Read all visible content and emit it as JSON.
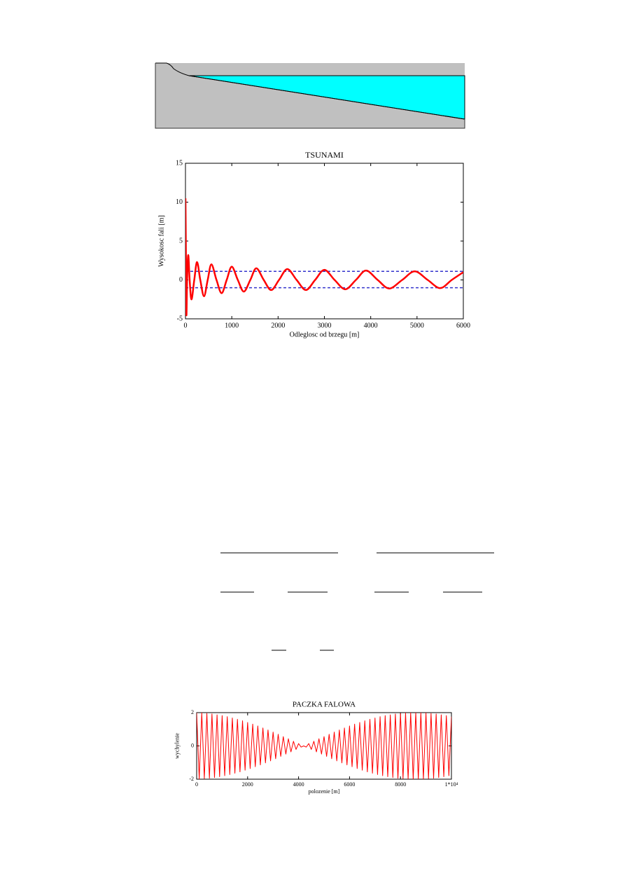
{
  "chart_data": [
    {
      "type": "line",
      "title": "TSUNAMI",
      "y_label": "Wysokosc fali [m]",
      "x_label": "Odleglosc od brzegu [m]",
      "color": "#ff0000",
      "x": [
        0,
        10,
        20,
        35,
        60,
        90,
        130,
        190,
        250,
        320,
        400,
        480,
        560,
        670,
        780,
        890,
        1000,
        1130,
        1260,
        1400,
        1530,
        1690,
        1850,
        2020,
        2200,
        2400,
        2600,
        2800,
        3000,
        3220,
        3450,
        3680,
        3900,
        4150,
        4400,
        4680,
        4950,
        5230,
        5500,
        5750,
        6000
      ],
      "values": [
        10.5,
        3,
        -4.5,
        0,
        3.2,
        0,
        -2.5,
        0,
        2.3,
        0,
        -2.1,
        0,
        2.0,
        0,
        -1.7,
        0,
        1.7,
        0,
        -1.5,
        0,
        1.5,
        0,
        -1.3,
        0,
        1.4,
        0,
        -1.3,
        0,
        1.3,
        0,
        -1.2,
        0,
        1.2,
        0,
        -1.1,
        0,
        1.1,
        0,
        -1.05,
        0,
        1.0
      ],
      "hlines": [
        {
          "value": 1.1,
          "color": "#3333cc"
        },
        {
          "value": -1,
          "color": "#3333cc"
        }
      ],
      "xlim": [
        0,
        6000
      ],
      "xticks": [
        0,
        1000,
        2000,
        3000,
        4000,
        5000,
        6000
      ],
      "ylim": [
        -5,
        15
      ],
      "yticks": [
        -5,
        0,
        5,
        10,
        15
      ],
      "grid": false
    },
    {
      "type": "line",
      "title": "PACZKA FALOWA",
      "y_label": "wychylenie",
      "x_label": "polozenie [m]",
      "color": "#ff0000",
      "x": [
        0,
        100,
        200,
        300,
        400,
        500,
        600,
        700,
        800,
        900,
        1000,
        1100,
        1200,
        1300,
        1400,
        1500,
        1600,
        1700,
        1800,
        1900,
        2000,
        2100,
        2200,
        2300,
        2400,
        2500,
        2600,
        2700,
        2800,
        2900,
        3000,
        3100,
        3200,
        3300,
        3400,
        3500,
        3600,
        3700,
        3800,
        3900,
        4000,
        4100,
        4200,
        4300,
        4400,
        4500,
        4600,
        4700,
        4800,
        4900,
        5000,
        5100,
        5200,
        5300,
        5400,
        5500,
        5600,
        5700,
        5800,
        5900,
        6000,
        6100,
        6200,
        6300,
        6400,
        6500,
        6600,
        6700,
        6800,
        6900,
        7000,
        7100,
        7200,
        7300,
        7400,
        7500,
        7600,
        7700,
        7800,
        7900,
        8000,
        8100,
        8200,
        8300,
        8400,
        8500,
        8600,
        8700,
        8800,
        8900,
        9000,
        9100,
        9200,
        9300,
        9400,
        9500,
        9600,
        9700,
        9800,
        9900,
        10000
      ],
      "values": [
        1.99,
        -1.99,
        1.98,
        -1.97,
        1.95,
        -1.94,
        1.92,
        -1.9,
        1.87,
        -1.85,
        1.82,
        -1.79,
        1.76,
        -1.72,
        1.68,
        -1.64,
        1.6,
        -1.56,
        1.51,
        -1.46,
        1.41,
        -1.36,
        1.31,
        -1.25,
        1.2,
        -1.14,
        1.08,
        -1.02,
        0.96,
        -0.9,
        0.83,
        -0.77,
        0.7,
        -0.63,
        0.56,
        -0.49,
        0.43,
        -0.36,
        0.28,
        -0.21,
        0.14,
        -0.07,
        0,
        -0.07,
        0.14,
        -0.21,
        0.28,
        -0.36,
        0.43,
        -0.49,
        0.56,
        -0.63,
        0.7,
        -0.77,
        0.83,
        -0.9,
        0.96,
        -1.02,
        1.08,
        -1.14,
        1.2,
        -1.25,
        1.31,
        -1.36,
        1.41,
        -1.46,
        1.51,
        -1.56,
        1.6,
        -1.64,
        1.68,
        -1.72,
        1.76,
        -1.79,
        1.82,
        -1.85,
        1.87,
        -1.9,
        1.92,
        -1.94,
        1.95,
        -1.97,
        1.98,
        -1.99,
        1.99,
        -2.0,
        2.0,
        -2.0,
        1.99,
        -1.99,
        1.98,
        -1.97,
        1.95,
        -1.94,
        1.92,
        -1.9,
        1.87,
        -1.85,
        1.82,
        -1.79,
        1.76
      ],
      "xlim": [
        0,
        10000
      ],
      "xticks": [
        0,
        2000,
        4000,
        6000,
        8000,
        {
          "value": 10000,
          "label": "1*10⁴"
        }
      ],
      "ylim": [
        -2,
        2
      ],
      "yticks": [
        -2,
        0,
        2
      ],
      "grid": false
    }
  ]
}
